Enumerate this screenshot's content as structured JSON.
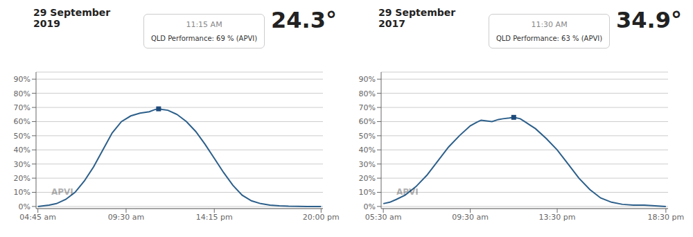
{
  "chart_data": [
    {
      "type": "line",
      "title": "29 September 2019",
      "annotations": [
        "24.3°",
        "11:15 AM",
        "QLD Performance: 69 % (APVI)",
        "APVI"
      ],
      "x": [
        0.0,
        0.3,
        0.6,
        1.0,
        1.5,
        2.0,
        2.5,
        3.0,
        3.5,
        4.0,
        4.5,
        5.0,
        5.5,
        6.0,
        6.3,
        6.5,
        6.7,
        7.0,
        7.5,
        8.0,
        8.5,
        9.0,
        9.5,
        10.0,
        10.5,
        11.0,
        11.5,
        12.0,
        12.5,
        13.0,
        13.5,
        14.0,
        14.5,
        15.0,
        15.25
      ],
      "values": [
        0.0,
        0.005,
        0.01,
        0.02,
        0.05,
        0.1,
        0.18,
        0.28,
        0.4,
        0.52,
        0.6,
        0.64,
        0.66,
        0.67,
        0.685,
        0.69,
        0.685,
        0.68,
        0.65,
        0.6,
        0.53,
        0.44,
        0.34,
        0.24,
        0.15,
        0.08,
        0.04,
        0.02,
        0.01,
        0.005,
        0.002,
        0.001,
        0.0,
        0.0,
        0.0
      ],
      "color": "#2c5f8a",
      "peak": {
        "x": 6.5,
        "y": 0.69,
        "color": "#1e4a7a",
        "marker": "square"
      },
      "xlim": [
        -0.1,
        15.35
      ],
      "xticks": [
        {
          "value": 0.0,
          "label": "04:45 am"
        },
        {
          "value": 4.75,
          "label": "09:30 am"
        },
        {
          "value": 9.5,
          "label": "14:15 pm"
        },
        {
          "value": 15.25,
          "label": "20:00 pm"
        }
      ],
      "ylim": [
        -0.015,
        0.95
      ],
      "yticks": [
        {
          "value": 0.0,
          "label": "0%"
        },
        {
          "value": 0.1,
          "label": "10%"
        },
        {
          "value": 0.2,
          "label": "20%"
        },
        {
          "value": 0.3,
          "label": "30%"
        },
        {
          "value": 0.4,
          "label": "40%"
        },
        {
          "value": 0.5,
          "label": "50%"
        },
        {
          "value": 0.6,
          "label": "60%"
        },
        {
          "value": 0.7,
          "label": "70%"
        },
        {
          "value": 0.8,
          "label": "80%"
        },
        {
          "value": 0.9,
          "label": "90%"
        }
      ],
      "grid": true
    },
    {
      "type": "line",
      "title": "29 September 2017",
      "annotations": [
        "34.9°",
        "11:30 AM",
        "QLD Performance: 63 % (APVI)",
        "APVI"
      ],
      "x": [
        0.0,
        0.3,
        0.6,
        1.0,
        1.5,
        2.0,
        2.5,
        3.0,
        3.5,
        4.0,
        4.3,
        4.5,
        5.0,
        5.3,
        5.5,
        5.8,
        6.0,
        6.3,
        6.5,
        7.0,
        7.5,
        8.0,
        8.5,
        9.0,
        9.5,
        10.0,
        10.5,
        11.0,
        11.5,
        12.0,
        12.5,
        13.0
      ],
      "values": [
        0.02,
        0.03,
        0.05,
        0.08,
        0.14,
        0.22,
        0.32,
        0.42,
        0.5,
        0.57,
        0.595,
        0.61,
        0.6,
        0.615,
        0.62,
        0.625,
        0.63,
        0.62,
        0.6,
        0.55,
        0.48,
        0.4,
        0.3,
        0.2,
        0.12,
        0.06,
        0.03,
        0.015,
        0.01,
        0.01,
        0.005,
        0.0
      ],
      "color": "#2c5f8a",
      "peak": {
        "x": 6.0,
        "y": 0.63,
        "color": "#1e4a7a",
        "marker": "square"
      },
      "xlim": [
        -0.1,
        13.1
      ],
      "xticks": [
        {
          "value": 0.0,
          "label": "05:30 am"
        },
        {
          "value": 4.0,
          "label": "09:30 am"
        },
        {
          "value": 8.0,
          "label": "13:30 pm"
        },
        {
          "value": 13.0,
          "label": "18:30 pm"
        }
      ],
      "ylim": [
        -0.015,
        0.95
      ],
      "yticks": [
        {
          "value": 0.0,
          "label": "0%"
        },
        {
          "value": 0.1,
          "label": "10%"
        },
        {
          "value": 0.2,
          "label": "20%"
        },
        {
          "value": 0.3,
          "label": "30%"
        },
        {
          "value": 0.4,
          "label": "40%"
        },
        {
          "value": 0.5,
          "label": "50%"
        },
        {
          "value": 0.6,
          "label": "60%"
        },
        {
          "value": 0.7,
          "label": "70%"
        },
        {
          "value": 0.8,
          "label": "80%"
        },
        {
          "value": 0.9,
          "label": "90%"
        }
      ],
      "grid": true
    }
  ]
}
